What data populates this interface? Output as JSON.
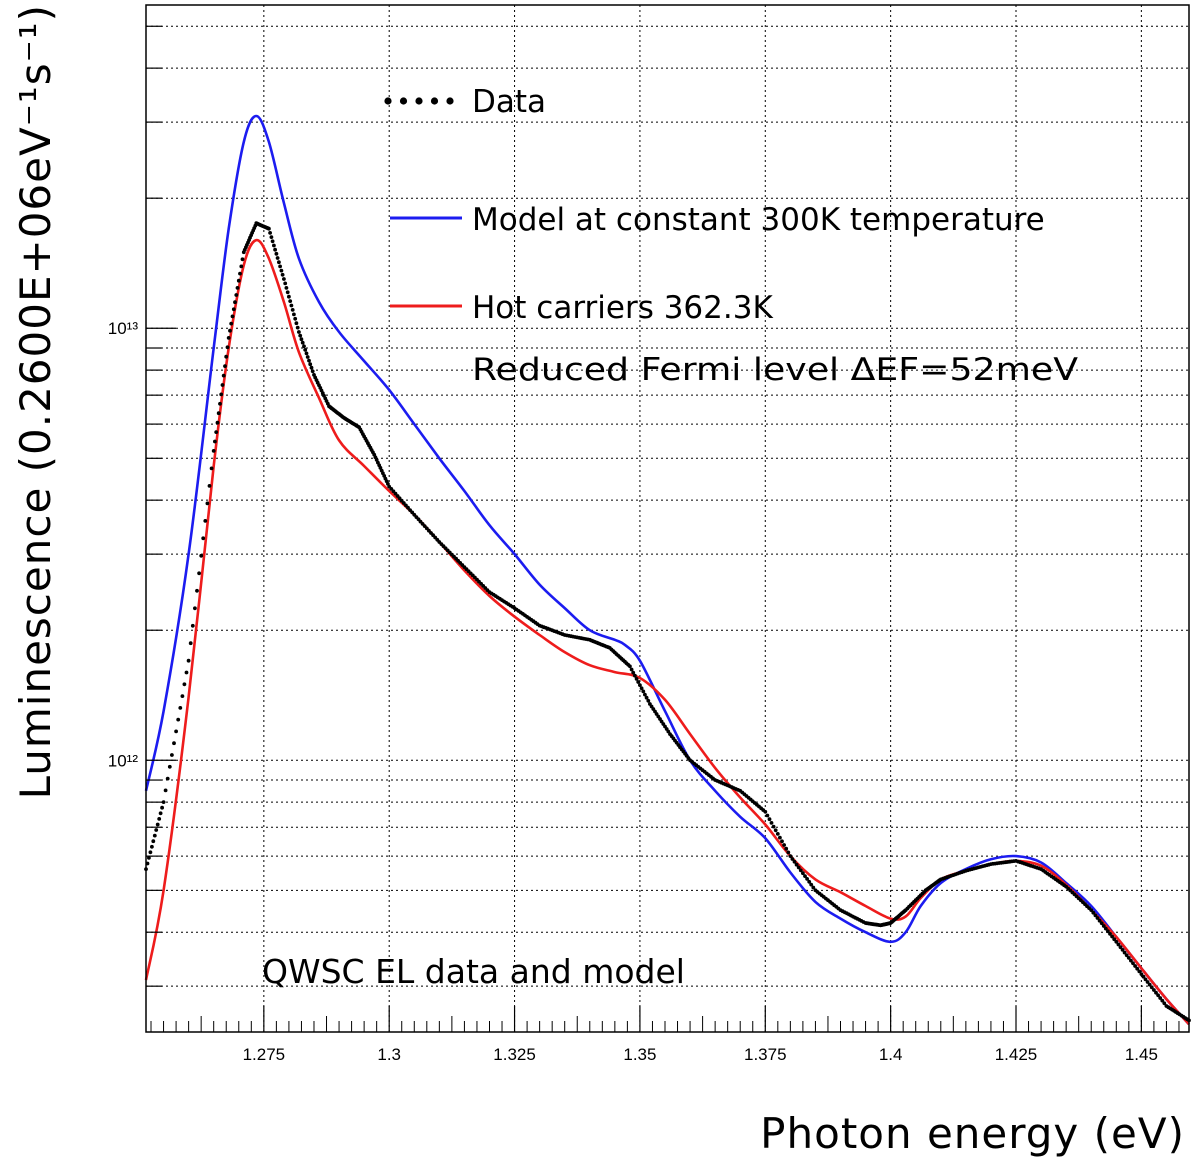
{
  "chart_data": {
    "type": "line",
    "title": "",
    "annotation": "QWSC EL data and model",
    "xlabel": "Photon energy (eV)",
    "ylabel": "Luminescence (0.2600E+06eV⁻¹s⁻¹)",
    "xlim": [
      1.2515,
      1.4595
    ],
    "ylim": [
      235000000000.0,
      56000000000000.0
    ],
    "yscale": "log",
    "grid": true,
    "x_ticks": [
      {
        "value": 1.275,
        "label": "1.275"
      },
      {
        "value": 1.3,
        "label": "1.3"
      },
      {
        "value": 1.325,
        "label": "1.325"
      },
      {
        "value": 1.35,
        "label": "1.35"
      },
      {
        "value": 1.375,
        "label": "1.375"
      },
      {
        "value": 1.4,
        "label": "1.4"
      },
      {
        "value": 1.425,
        "label": "1.425"
      },
      {
        "value": 1.45,
        "label": "1.45"
      }
    ],
    "y_ticks": [
      {
        "value": 1000000000000.0,
        "label": "10¹²"
      },
      {
        "value": 10000000000000.0,
        "label": "10¹³"
      }
    ],
    "legend": {
      "placement": "top-right",
      "entries": [
        {
          "label": "Data",
          "style": "dotted",
          "color": "#000000"
        },
        {
          "label": "Model at constant 300K temperature",
          "style": "line",
          "color": "#1c1cf0"
        },
        {
          "label": "Hot carriers 362.3K",
          "style": "line",
          "color": "#ee1c1c"
        },
        {
          "label": "Reduced Fermi level ΔEF=52meV",
          "style": "none",
          "color": "#000000"
        }
      ]
    },
    "series": [
      {
        "name": "Data",
        "color": "#000000",
        "style": "dotted",
        "x": [
          1.2515,
          1.255,
          1.26,
          1.265,
          1.268,
          1.271,
          1.2735,
          1.276,
          1.279,
          1.282,
          1.285,
          1.288,
          1.291,
          1.294,
          1.297,
          1.3,
          1.305,
          1.31,
          1.315,
          1.32,
          1.325,
          1.33,
          1.335,
          1.34,
          1.344,
          1.348,
          1.352,
          1.356,
          1.36,
          1.365,
          1.37,
          1.375,
          1.38,
          1.385,
          1.39,
          1.395,
          1.398,
          1.4,
          1.403,
          1.407,
          1.41,
          1.415,
          1.42,
          1.425,
          1.43,
          1.435,
          1.44,
          1.445,
          1.45,
          1.455,
          1.4595
        ],
        "y": [
          560000000000.0,
          800000000000.0,
          1700000000000.0,
          5200000000000.0,
          9500000000000.0,
          15000000000000.0,
          17500000000000.0,
          17000000000000.0,
          13000000000000.0,
          9800000000000.0,
          7800000000000.0,
          6600000000000.0,
          6200000000000.0,
          5900000000000.0,
          5100000000000.0,
          4300000000000.0,
          3700000000000.0,
          3200000000000.0,
          2800000000000.0,
          2450000000000.0,
          2250000000000.0,
          2050000000000.0,
          1950000000000.0,
          1900000000000.0,
          1820000000000.0,
          1650000000000.0,
          1350000000000.0,
          1150000000000.0,
          1000000000000.0,
          900000000000.0,
          850000000000.0,
          760000000000.0,
          600000000000.0,
          500000000000.0,
          450000000000.0,
          420000000000.0,
          415000000000.0,
          420000000000.0,
          450000000000.0,
          500000000000.0,
          530000000000.0,
          555000000000.0,
          575000000000.0,
          585000000000.0,
          560000000000.0,
          510000000000.0,
          450000000000.0,
          380000000000.0,
          320000000000.0,
          270000000000.0,
          250000000000.0
        ]
      },
      {
        "name": "Model at constant 300K temperature",
        "color": "#1c1cf0",
        "style": "line",
        "x": [
          1.2515,
          1.255,
          1.26,
          1.265,
          1.268,
          1.271,
          1.2735,
          1.276,
          1.279,
          1.282,
          1.286,
          1.29,
          1.295,
          1.3,
          1.305,
          1.31,
          1.315,
          1.32,
          1.325,
          1.33,
          1.335,
          1.34,
          1.345,
          1.347,
          1.35,
          1.355,
          1.36,
          1.365,
          1.37,
          1.375,
          1.38,
          1.385,
          1.39,
          1.395,
          1.4,
          1.403,
          1.406,
          1.41,
          1.415,
          1.42,
          1.425,
          1.43,
          1.435,
          1.44,
          1.445,
          1.45,
          1.455,
          1.4595
        ],
        "y": [
          850000000000.0,
          1300000000000.0,
          3000000000000.0,
          9000000000000.0,
          17000000000000.0,
          27000000000000.0,
          31000000000000.0,
          27000000000000.0,
          19500000000000.0,
          14500000000000.0,
          11500000000000.0,
          9800000000000.0,
          8400000000000.0,
          7200000000000.0,
          6000000000000.0,
          5000000000000.0,
          4200000000000.0,
          3500000000000.0,
          3000000000000.0,
          2550000000000.0,
          2250000000000.0,
          2000000000000.0,
          1900000000000.0,
          1850000000000.0,
          1700000000000.0,
          1300000000000.0,
          1000000000000.0,
          850000000000.0,
          740000000000.0,
          660000000000.0,
          550000000000.0,
          470000000000.0,
          430000000000.0,
          400000000000.0,
          380000000000.0,
          400000000000.0,
          460000000000.0,
          520000000000.0,
          560000000000.0,
          590000000000.0,
          600000000000.0,
          580000000000.0,
          520000000000.0,
          460000000000.0,
          390000000000.0,
          330000000000.0,
          280000000000.0,
          245000000000.0
        ]
      },
      {
        "name": "Hot carriers 362.3K",
        "color": "#ee1c1c",
        "style": "line",
        "x": [
          1.2515,
          1.255,
          1.26,
          1.265,
          1.268,
          1.271,
          1.2735,
          1.276,
          1.279,
          1.282,
          1.286,
          1.29,
          1.295,
          1.3,
          1.305,
          1.31,
          1.315,
          1.32,
          1.325,
          1.33,
          1.335,
          1.34,
          1.345,
          1.35,
          1.355,
          1.36,
          1.365,
          1.37,
          1.375,
          1.38,
          1.385,
          1.39,
          1.395,
          1.4,
          1.403,
          1.406,
          1.41,
          1.415,
          1.42,
          1.425,
          1.43,
          1.435,
          1.44,
          1.445,
          1.45,
          1.455,
          1.4595
        ],
        "y": [
          310000000000.0,
          500000000000.0,
          1400000000000.0,
          4800000000000.0,
          9000000000000.0,
          14000000000000.0,
          16000000000000.0,
          14500000000000.0,
          11500000000000.0,
          8800000000000.0,
          6900000000000.0,
          5500000000000.0,
          4800000000000.0,
          4200000000000.0,
          3700000000000.0,
          3200000000000.0,
          2750000000000.0,
          2400000000000.0,
          2150000000000.0,
          1950000000000.0,
          1780000000000.0,
          1660000000000.0,
          1600000000000.0,
          1550000000000.0,
          1380000000000.0,
          1150000000000.0,
          960000000000.0,
          820000000000.0,
          710000000000.0,
          600000000000.0,
          530000000000.0,
          495000000000.0,
          460000000000.0,
          430000000000.0,
          435000000000.0,
          480000000000.0,
          530000000000.0,
          555000000000.0,
          575000000000.0,
          585000000000.0,
          570000000000.0,
          515000000000.0,
          450000000000.0,
          390000000000.0,
          330000000000.0,
          280000000000.0,
          245000000000.0
        ]
      }
    ]
  }
}
